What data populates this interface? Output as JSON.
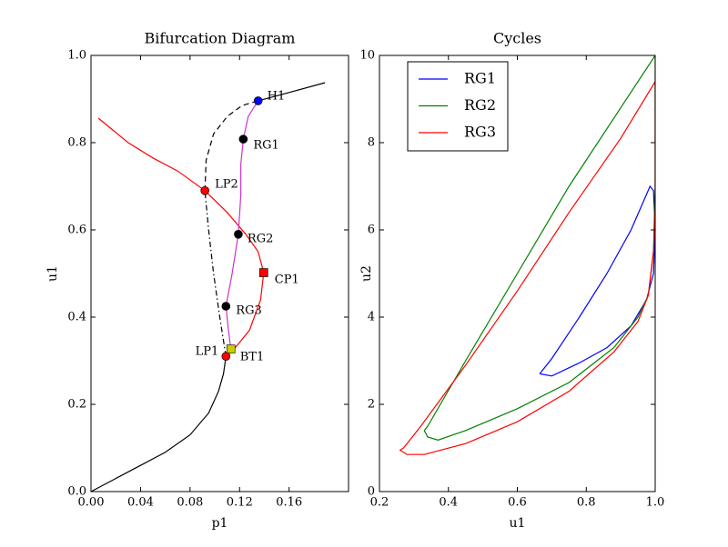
{
  "chart_data": [
    {
      "type": "line",
      "title": "Bifurcation Diagram",
      "xlabel": "p1",
      "ylabel": "u1",
      "xlim": [
        0,
        0.208
      ],
      "ylim": [
        0,
        1.0
      ],
      "xticks": [
        {
          "value": 0,
          "label": "0.00"
        },
        0.04,
        0.08,
        0.12,
        0.16
      ],
      "yticks": [
        {
          "value": 0,
          "label": "0.0"
        },
        0.2,
        0.4,
        0.6,
        0.8,
        {
          "value": 1.0,
          "label": "1.0"
        }
      ],
      "series": [
        {
          "color": "#000000",
          "linestyle": "solid",
          "x": [
            0,
            0.02,
            0.04,
            0.06,
            0.08,
            0.095,
            0.103,
            0.107,
            0.109
          ],
          "values": [
            0,
            0.03,
            0.06,
            0.09,
            0.13,
            0.18,
            0.23,
            0.27,
            0.31
          ]
        },
        {
          "color": "#000000",
          "linestyle": "dashdot",
          "x": [
            0.109,
            0.104,
            0.099,
            0.095,
            0.092
          ],
          "values": [
            0.31,
            0.4,
            0.5,
            0.6,
            0.69
          ]
        },
        {
          "color": "#000000",
          "linestyle": "dashed",
          "x": [
            0.092,
            0.093,
            0.099,
            0.11,
            0.122,
            0.135
          ],
          "values": [
            0.69,
            0.76,
            0.82,
            0.86,
            0.885,
            0.896
          ]
        },
        {
          "color": "#000000",
          "linestyle": "solid",
          "x": [
            0.135,
            0.16,
            0.189
          ],
          "values": [
            0.896,
            0.915,
            0.9375
          ]
        },
        {
          "color": "#ff0000",
          "linestyle": "solid",
          "x": [
            0.006,
            0.03,
            0.05,
            0.07,
            0.092,
            0.11,
            0.125,
            0.135,
            0.1395,
            0.137,
            0.128,
            0.118,
            0.109
          ],
          "values": [
            0.856,
            0.8,
            0.765,
            0.735,
            0.69,
            0.64,
            0.59,
            0.55,
            0.502,
            0.44,
            0.37,
            0.335,
            0.31
          ]
        },
        {
          "color": "#cc33cc",
          "linestyle": "solid",
          "x": [
            0.135,
            0.127,
            0.123,
            0.121,
            0.121,
            0.119,
            0.114,
            0.109,
            0.111,
            0.113
          ],
          "values": [
            0.896,
            0.86,
            0.808,
            0.75,
            0.68,
            0.59,
            0.5,
            0.425,
            0.37,
            0.327
          ]
        }
      ],
      "points": [
        {
          "label": "H1",
          "x": 0.135,
          "y": 0.896,
          "color": "#0000ff",
          "marker": "circle"
        },
        {
          "label": "RG1",
          "x": 0.123,
          "y": 0.808,
          "color": "#000000",
          "marker": "circle"
        },
        {
          "label": "LP2",
          "x": 0.092,
          "y": 0.69,
          "color": "#ff0000",
          "marker": "circle"
        },
        {
          "label": "RG2",
          "x": 0.119,
          "y": 0.59,
          "color": "#000000",
          "marker": "circle"
        },
        {
          "label": "CP1",
          "x": 0.1395,
          "y": 0.502,
          "color": "#ff0000",
          "marker": "square"
        },
        {
          "label": "RG3",
          "x": 0.109,
          "y": 0.425,
          "color": "#000000",
          "marker": "circle"
        },
        {
          "label": "LP1",
          "x": 0.109,
          "y": 0.31,
          "color": "#ff0000",
          "marker": "circle"
        },
        {
          "label": "BT1",
          "x": 0.113,
          "y": 0.327,
          "color": "#cccc00",
          "marker": "square"
        }
      ]
    },
    {
      "type": "line",
      "title": "Cycles",
      "xlabel": "u1",
      "ylabel": "u2",
      "xlim": [
        0.2,
        1.0
      ],
      "ylim": [
        0,
        10
      ],
      "xticks": [
        0.2,
        0.4,
        0.6,
        0.8,
        {
          "value": 1.0,
          "label": "1.0"
        }
      ],
      "yticks": [
        0,
        2,
        4,
        6,
        8,
        10
      ],
      "legend": "upper left",
      "series": [
        {
          "name": "RG1",
          "color": "#0000ff",
          "linestyle": "solid",
          "x": [
            0.665,
            0.7,
            0.78,
            0.86,
            0.93,
            0.985,
            0.995,
            1.0,
            0.995,
            0.975,
            0.93,
            0.86,
            0.78,
            0.7,
            0.665
          ],
          "values": [
            2.7,
            3.05,
            4.0,
            5.0,
            6.0,
            7.0,
            6.9,
            6.0,
            5.0,
            4.4,
            3.8,
            3.3,
            2.95,
            2.65,
            2.7
          ]
        },
        {
          "name": "RG2",
          "color": "#008000",
          "linestyle": "solid",
          "x": [
            0.34,
            0.45,
            0.6,
            0.75,
            0.9,
            1.0,
            1.0,
            1.0,
            0.995,
            0.98,
            0.95,
            0.88,
            0.75,
            0.6,
            0.45,
            0.37,
            0.34,
            0.33,
            0.34
          ],
          "values": [
            1.5,
            3.0,
            5.0,
            7.0,
            8.8,
            10.0,
            9.0,
            7.0,
            5.5,
            4.5,
            4.0,
            3.3,
            2.5,
            1.9,
            1.4,
            1.18,
            1.25,
            1.4,
            1.5
          ]
        },
        {
          "name": "RG3",
          "color": "#ff0000",
          "linestyle": "solid",
          "x": [
            0.27,
            0.32,
            0.45,
            0.6,
            0.75,
            0.9,
            1.0,
            1.0,
            1.0,
            0.995,
            0.98,
            0.95,
            0.88,
            0.75,
            0.6,
            0.45,
            0.33,
            0.28,
            0.26,
            0.27
          ],
          "values": [
            1.0,
            1.5,
            2.9,
            4.6,
            6.4,
            8.1,
            9.4,
            8.0,
            6.5,
            5.5,
            4.5,
            3.9,
            3.2,
            2.3,
            1.6,
            1.1,
            0.85,
            0.85,
            0.95,
            1.0
          ]
        }
      ]
    }
  ]
}
